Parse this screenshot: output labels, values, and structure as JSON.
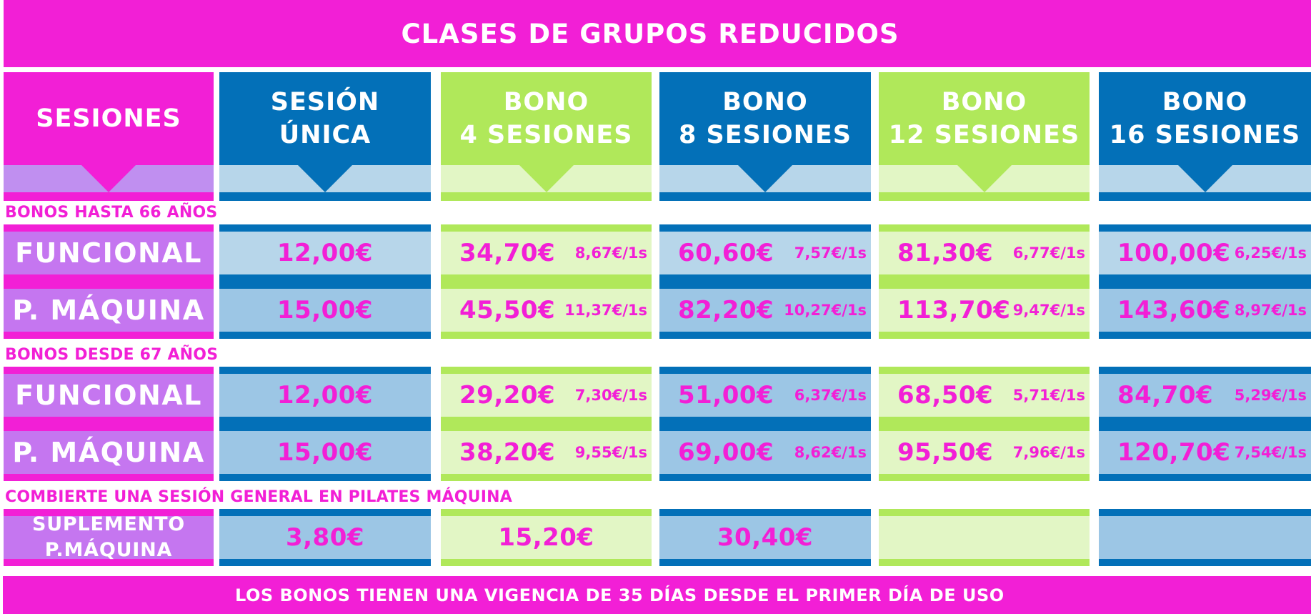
{
  "title": "CLASES DE GRUPOS REDUCIDOS",
  "footer": "LOS BONOS TIENEN UNA VIGENCIA DE 35 DÍAS DESDE EL PRIMER DÍA DE USO",
  "colors": {
    "magenta": "#f21fd6",
    "lilac": "#c576f0",
    "blue": "#0370b8",
    "light_blue": "#b7d6ea",
    "mid_blue": "#9cc6e5",
    "green": "#b0e85a",
    "light_green": "#e2f6c5"
  },
  "headers": {
    "first": "SESIONES",
    "columns": [
      {
        "line1": "SESIÓN",
        "line2": "ÚNICA"
      },
      {
        "line1": "BONO",
        "line2": "4 SESIONES"
      },
      {
        "line1": "BONO",
        "line2": "8 SESIONES"
      },
      {
        "line1": "BONO",
        "line2": "12 SESIONES"
      },
      {
        "line1": "BONO",
        "line2": "16 SESIONES"
      }
    ]
  },
  "sections": [
    {
      "label": "BONOS HASTA 66 AÑOS",
      "rows": [
        {
          "label": "FUNCIONAL",
          "cells": [
            {
              "price": "12,00€",
              "unit": ""
            },
            {
              "price": "34,70€",
              "unit": "8,67€/1s"
            },
            {
              "price": "60,60€",
              "unit": "7,57€/1s"
            },
            {
              "price": "81,30€",
              "unit": "6,77€/1s"
            },
            {
              "price": "100,00€",
              "unit": "6,25€/1s"
            }
          ]
        },
        {
          "label": "P. MÁQUINA",
          "cells": [
            {
              "price": "15,00€",
              "unit": ""
            },
            {
              "price": "45,50€",
              "unit": "11,37€/1s"
            },
            {
              "price": "82,20€",
              "unit": "10,27€/1s"
            },
            {
              "price": "113,70€",
              "unit": "9,47€/1s"
            },
            {
              "price": "143,60€",
              "unit": "8,97€/1s"
            }
          ]
        }
      ]
    },
    {
      "label": "BONOS DESDE 67 AÑOS",
      "rows": [
        {
          "label": "FUNCIONAL",
          "cells": [
            {
              "price": "12,00€",
              "unit": ""
            },
            {
              "price": "29,20€",
              "unit": "7,30€/1s"
            },
            {
              "price": "51,00€",
              "unit": "6,37€/1s"
            },
            {
              "price": "68,50€",
              "unit": "5,71€/1s"
            },
            {
              "price": "84,70€",
              "unit": "5,29€/1s"
            }
          ]
        },
        {
          "label": "P. MÁQUINA",
          "cells": [
            {
              "price": "15,00€",
              "unit": ""
            },
            {
              "price": "38,20€",
              "unit": "9,55€/1s"
            },
            {
              "price": "69,00€",
              "unit": "8,62€/1s"
            },
            {
              "price": "95,50€",
              "unit": "7,96€/1s"
            },
            {
              "price": "120,70€",
              "unit": "7,54€/1s"
            }
          ]
        }
      ]
    },
    {
      "label": "COMBIERTE UNA SESIÓN GENERAL EN PILATES MÁQUINA",
      "rows": [
        {
          "label_line1": "SUPLEMENTO",
          "label_line2": "P.MÁQUINA",
          "cells": [
            {
              "price": "3,80€",
              "unit": ""
            },
            {
              "price": "15,20€",
              "unit": ""
            },
            {
              "price": "30,40€",
              "unit": ""
            },
            {
              "price": "",
              "unit": ""
            },
            {
              "price": "",
              "unit": ""
            }
          ]
        }
      ]
    }
  ]
}
